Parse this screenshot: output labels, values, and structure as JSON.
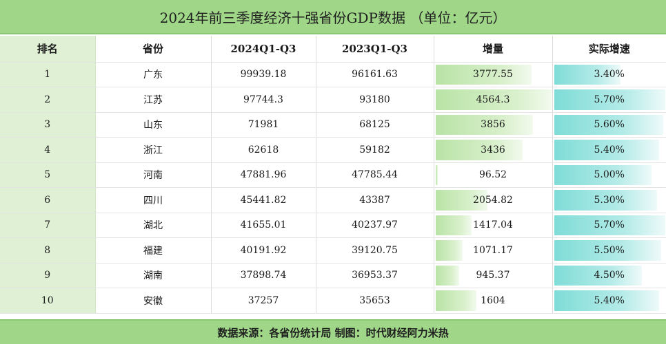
{
  "title": "2024年前三季度经济十强省份GDP数据 （单位：亿元）",
  "headers": {
    "rank": "排名",
    "province": "省份",
    "q2024": "2024Q1-Q3",
    "q2023": "2023Q1-Q3",
    "increase": "增量",
    "growth": "实际增速"
  },
  "rows": [
    {
      "rank": "1",
      "province": "广东",
      "q2024": "99939.18",
      "q2023": "96161.63",
      "increase": "3777.55",
      "increase_value": 3777.55,
      "growth": "3.40%",
      "growth_value": 3.4
    },
    {
      "rank": "2",
      "province": "江苏",
      "q2024": "97744.3",
      "q2023": "93180",
      "increase": "4564.3",
      "increase_value": 4564.3,
      "growth": "5.70%",
      "growth_value": 5.7
    },
    {
      "rank": "3",
      "province": "山东",
      "q2024": "71981",
      "q2023": "68125",
      "increase": "3856",
      "increase_value": 3856,
      "growth": "5.60%",
      "growth_value": 5.6
    },
    {
      "rank": "4",
      "province": "浙江",
      "q2024": "62618",
      "q2023": "59182",
      "increase": "3436",
      "increase_value": 3436,
      "growth": "5.40%",
      "growth_value": 5.4
    },
    {
      "rank": "5",
      "province": "河南",
      "q2024": "47881.96",
      "q2023": "47785.44",
      "increase": "96.52",
      "increase_value": 96.52,
      "growth": "5.00%",
      "growth_value": 5.0
    },
    {
      "rank": "6",
      "province": "四川",
      "q2024": "45441.82",
      "q2023": "43387",
      "increase": "2054.82",
      "increase_value": 2054.82,
      "growth": "5.30%",
      "growth_value": 5.3
    },
    {
      "rank": "7",
      "province": "湖北",
      "q2024": "41655.01",
      "q2023": "40237.97",
      "increase": "1417.04",
      "increase_value": 1417.04,
      "growth": "5.70%",
      "growth_value": 5.7
    },
    {
      "rank": "8",
      "province": "福建",
      "q2024": "40191.92",
      "q2023": "39120.75",
      "increase": "1071.17",
      "increase_value": 1071.17,
      "growth": "5.50%",
      "growth_value": 5.5
    },
    {
      "rank": "9",
      "province": "湖南",
      "q2024": "37898.74",
      "q2023": "36953.37",
      "increase": "945.37",
      "increase_value": 945.37,
      "growth": "4.50%",
      "growth_value": 4.5
    },
    {
      "rank": "10",
      "province": "安徽",
      "q2024": "37257",
      "q2023": "35653",
      "increase": "1604",
      "increase_value": 1604,
      "growth": "5.40%",
      "growth_value": 5.4
    }
  ],
  "footer": "数据来源：各省份统计局 制图：时代财经阿力米热",
  "colors": {
    "header_bar": "#9fd688",
    "rank_column": "#dff0d4",
    "increase_bar": "#b9e3a6",
    "growth_bar": "#7fdcd7"
  }
}
